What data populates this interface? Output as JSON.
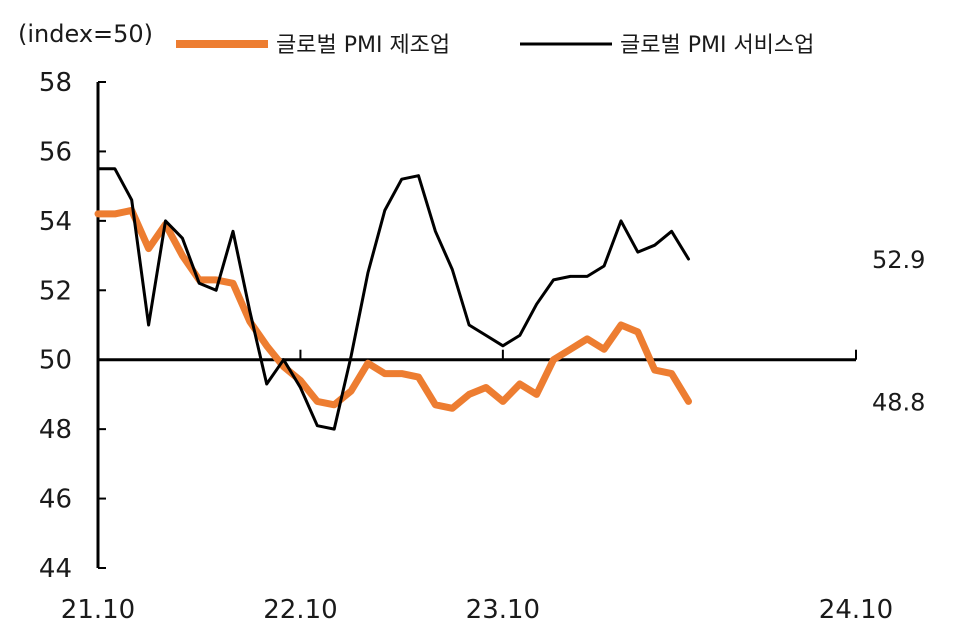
{
  "chart_data": {
    "type": "line",
    "unit_label": "(index=50)",
    "title": "",
    "xlabel": "",
    "ylabel": "",
    "ylim": [
      44,
      58
    ],
    "y_ticks": [
      "58",
      "56",
      "54",
      "52",
      "50",
      "48",
      "46",
      "44"
    ],
    "x_ticks": [
      "21.10",
      "22.10",
      "23.10",
      "24.10"
    ],
    "reference_line": 50,
    "legend_position": "top",
    "x": [
      "21.10",
      "21.11",
      "21.12",
      "22.01",
      "22.02",
      "22.03",
      "22.04",
      "22.05",
      "22.06",
      "22.07",
      "22.08",
      "22.09",
      "22.10",
      "22.11",
      "22.12",
      "23.01",
      "23.02",
      "23.03",
      "23.04",
      "23.05",
      "23.06",
      "23.07",
      "23.08",
      "23.09",
      "23.10",
      "23.11",
      "23.12",
      "24.01",
      "24.02",
      "24.03",
      "24.04",
      "24.05",
      "24.06",
      "24.07",
      "24.08",
      "24.09"
    ],
    "series": [
      {
        "name": "글로벌 PMI 제조업",
        "color": "#ED7D31",
        "values": [
          54.2,
          54.2,
          54.3,
          53.2,
          53.9,
          53.0,
          52.3,
          52.3,
          52.2,
          51.1,
          50.4,
          49.8,
          49.4,
          48.8,
          48.7,
          49.1,
          49.9,
          49.6,
          49.6,
          49.5,
          48.7,
          48.6,
          49.0,
          49.2,
          48.8,
          49.3,
          49.0,
          50.0,
          50.3,
          50.6,
          50.3,
          51.0,
          50.8,
          49.7,
          49.6,
          48.8
        ],
        "end_label": "48.8"
      },
      {
        "name": "글로벌 PMI 서비스업",
        "color": "#000000",
        "values": [
          55.5,
          55.5,
          54.6,
          51.0,
          54.0,
          53.5,
          52.2,
          52.0,
          53.7,
          51.4,
          49.3,
          50.0,
          49.2,
          48.1,
          48.0,
          50.1,
          52.5,
          54.3,
          55.2,
          55.3,
          53.7,
          52.6,
          51.0,
          50.7,
          50.4,
          50.7,
          51.6,
          52.3,
          52.4,
          52.4,
          52.7,
          54.0,
          53.1,
          53.3,
          53.7,
          52.9
        ],
        "end_label": "52.9"
      }
    ]
  }
}
